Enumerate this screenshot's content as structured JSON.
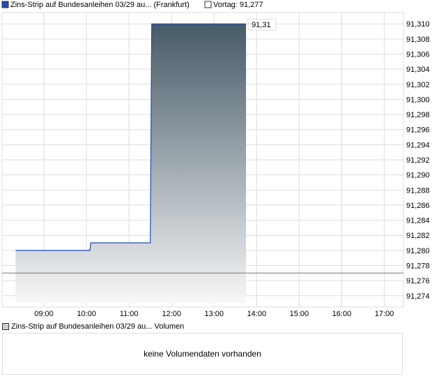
{
  "chart_data": {
    "type": "area",
    "legend": [
      {
        "label": "Zins-Strip auf Bundesanleihen 03/29 au... (Frankfurt)",
        "color": "#1f4fb4"
      },
      {
        "label": "Vortag: 91,277",
        "color": "#ffffff"
      }
    ],
    "series": [
      {
        "name": "Zins-Strip auf Bundesanleihen 03/29 au... (Frankfurt)",
        "x": [
          "08:20",
          "10:05",
          "10:06",
          "11:30",
          "11:31",
          "11:32",
          "13:45"
        ],
        "values": [
          91.28,
          91.28,
          91.281,
          91.281,
          91.296,
          91.31,
          91.31
        ]
      }
    ],
    "reference_line": {
      "label": "Vortag",
      "value": 91.277
    },
    "last_value_label": "91,31",
    "x_ticks": [
      "09:00",
      "10:00",
      "11:00",
      "12:00",
      "13:00",
      "14:00",
      "15:00",
      "16:00",
      "17:00"
    ],
    "y_ticks": [
      "91,274",
      "91,276",
      "91,278",
      "91,280",
      "91,282",
      "91,284",
      "91,286",
      "91,288",
      "91,290",
      "91,292",
      "91,294",
      "91,296",
      "91,298",
      "91,300",
      "91,302",
      "91,304",
      "91,306",
      "91,308",
      "91,310"
    ],
    "ylim": [
      91.2725,
      91.3115
    ],
    "xlim": [
      "08:01",
      "17:27"
    ],
    "grid": true,
    "line_color": "#1f4fb4",
    "fill_gradient": [
      "#465a67",
      "#f7f7f8"
    ]
  },
  "volume": {
    "legend": "Zins-Strip auf Bundesanleihen 03/29 au... Volumen",
    "message": "keine Volumendaten vorhanden"
  }
}
